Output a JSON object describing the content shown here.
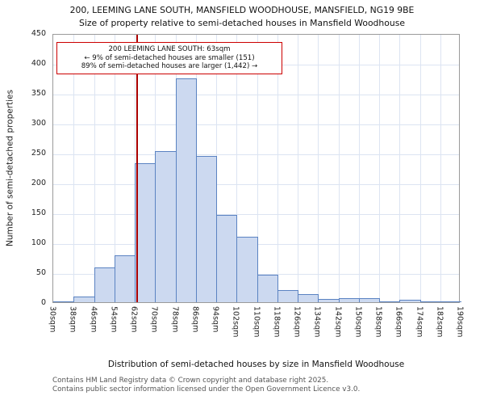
{
  "title": {
    "line1": "200, LEEMING LANE SOUTH, MANSFIELD WOODHOUSE, MANSFIELD, NG19 9BE",
    "line2": "Size of property relative to semi-detached houses in Mansfield Woodhouse"
  },
  "annotation": {
    "line1": "200 LEEMING LANE SOUTH: 63sqm",
    "line2": "← 9% of semi-detached houses are smaller (151)",
    "line3": "89% of semi-detached houses are larger (1,442) →"
  },
  "footer": {
    "line1": "Contains HM Land Registry data © Crown copyright and database right 2025.",
    "line2": "Contains public sector information licensed under the Open Government Licence v3.0."
  },
  "colors": {
    "bar_fill": "#ccd9f0",
    "bar_edge": "#5b83c2",
    "marker_line": "#aa0000",
    "annotation_border": "#cc0000",
    "grid": "#dce4f2"
  },
  "chart_data": {
    "type": "bar",
    "title": "Size of property relative to semi-detached houses in Mansfield Woodhouse",
    "xlabel": "Distribution of semi-detached houses by size in Mansfield Woodhouse",
    "ylabel": "Number of semi-detached properties",
    "x_start_sqm": 30,
    "bin_width_sqm": 8,
    "categories": [
      "30sqm",
      "38sqm",
      "46sqm",
      "54sqm",
      "62sqm",
      "70sqm",
      "78sqm",
      "86sqm",
      "94sqm",
      "102sqm",
      "110sqm",
      "118sqm",
      "126sqm",
      "134sqm",
      "142sqm",
      "150sqm",
      "158sqm",
      "166sqm",
      "174sqm",
      "182sqm",
      "190sqm"
    ],
    "values": [
      2,
      10,
      58,
      78,
      232,
      253,
      375,
      245,
      146,
      110,
      46,
      20,
      14,
      5,
      7,
      7,
      2,
      4,
      1,
      2
    ],
    "yticks": [
      0,
      50,
      100,
      150,
      200,
      250,
      300,
      350,
      400,
      450
    ],
    "ylim": [
      0,
      450
    ],
    "marker_value_sqm": 63,
    "legend": "none",
    "grid": true
  }
}
